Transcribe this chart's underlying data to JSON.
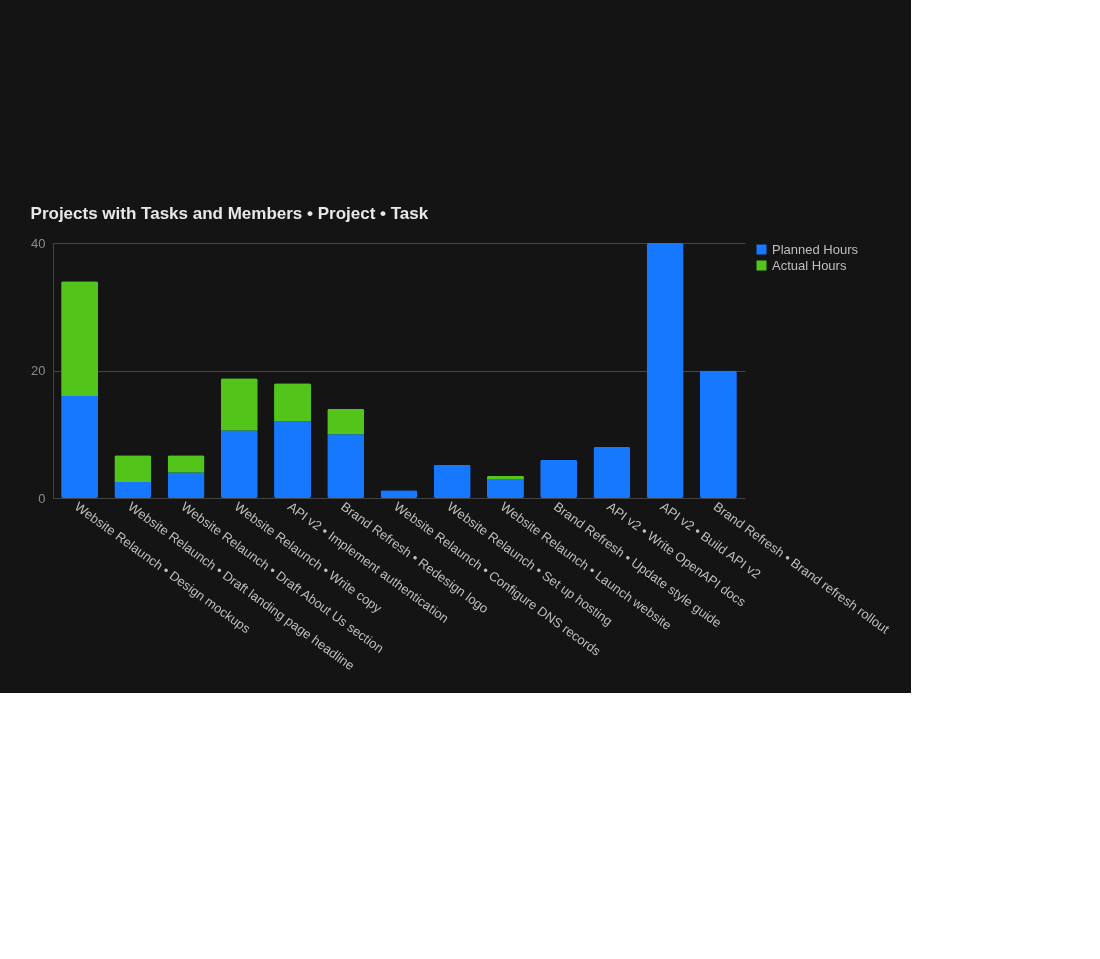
{
  "chart_data": {
    "type": "bar",
    "title": "Projects with Tasks and Members • Project • Task",
    "categories": [
      "Website Relaunch • Design mockups",
      "Website Relaunch • Draft landing page headline",
      "Website Relaunch • Draft About Us section",
      "Website Relaunch • Write copy",
      "API v2 • Implement authentication",
      "Brand Refresh • Redesign logo",
      "Website Relaunch • Configure DNS records",
      "Website Relaunch • Set up hosting",
      "Website Relaunch • Launch website",
      "Brand Refresh • Update style guide",
      "API v2 • Write OpenAPI docs",
      "API v2 • Build API v2",
      "Brand Refresh • Brand refresh rollout"
    ],
    "series": [
      {
        "name": "Planned Hours",
        "color": "#1677ff",
        "values": [
          16,
          2.5,
          4,
          10.6,
          12,
          10,
          1.2,
          5.2,
          3,
          6,
          8,
          40,
          20
        ]
      },
      {
        "name": "Actual Hours",
        "color": "#52c41a",
        "values": [
          18,
          4.2,
          2.7,
          8.2,
          6,
          4,
          0,
          0,
          0.5,
          0,
          0,
          0,
          0
        ]
      }
    ],
    "stacked": true,
    "ylim": [
      0,
      40
    ],
    "yticks": [
      0,
      20,
      40
    ],
    "grid": "y",
    "legend": "top right"
  }
}
